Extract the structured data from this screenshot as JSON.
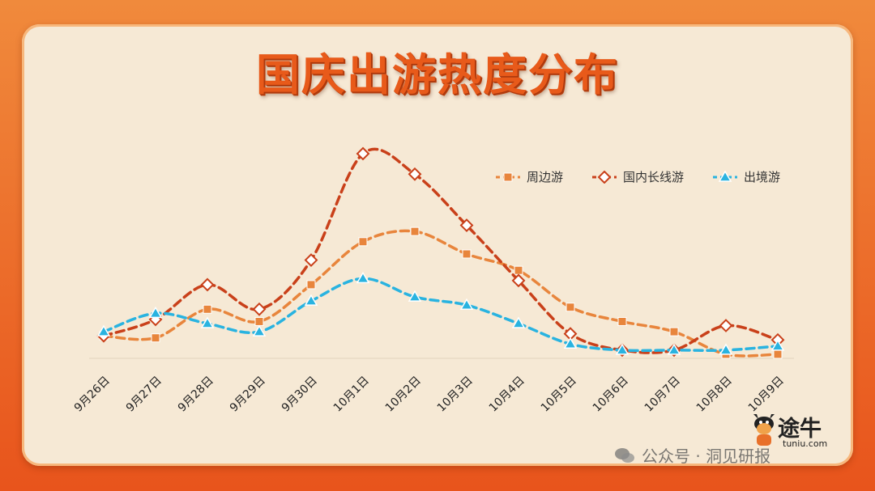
{
  "title": "国庆出游热度分布",
  "chart_data": {
    "type": "line",
    "title": "国庆出游热度分布",
    "categories": [
      "9月26日",
      "9月27日",
      "9月28日",
      "9月29日",
      "9月30日",
      "10月1日",
      "10月2日",
      "10月3日",
      "10月4日",
      "10月5日",
      "10月6日",
      "10月7日",
      "10月8日",
      "10月9日"
    ],
    "series": [
      {
        "name": "周边游",
        "color": "#e8853c",
        "marker": "square",
        "values": [
          11,
          10,
          24,
          18,
          36,
          57,
          62,
          51,
          43,
          25,
          18,
          13,
          2,
          2
        ]
      },
      {
        "name": "国内长线游",
        "color": "#c9401a",
        "marker": "diamond",
        "values": [
          11,
          19,
          36,
          24,
          48,
          100,
          90,
          65,
          38,
          12,
          4,
          4,
          16,
          9
        ]
      },
      {
        "name": "出境游",
        "color": "#29b3e0",
        "marker": "triangle",
        "values": [
          13,
          22,
          17,
          13,
          28,
          39,
          30,
          26,
          17,
          7,
          4,
          4,
          4,
          6
        ]
      }
    ],
    "ylim": [
      0,
      105
    ],
    "grid": false,
    "legend": "top-right"
  },
  "logo": {
    "brand": "途牛",
    "domain": "tuniu.com"
  },
  "watermark": {
    "text": "公众号 · 洞见研报"
  }
}
